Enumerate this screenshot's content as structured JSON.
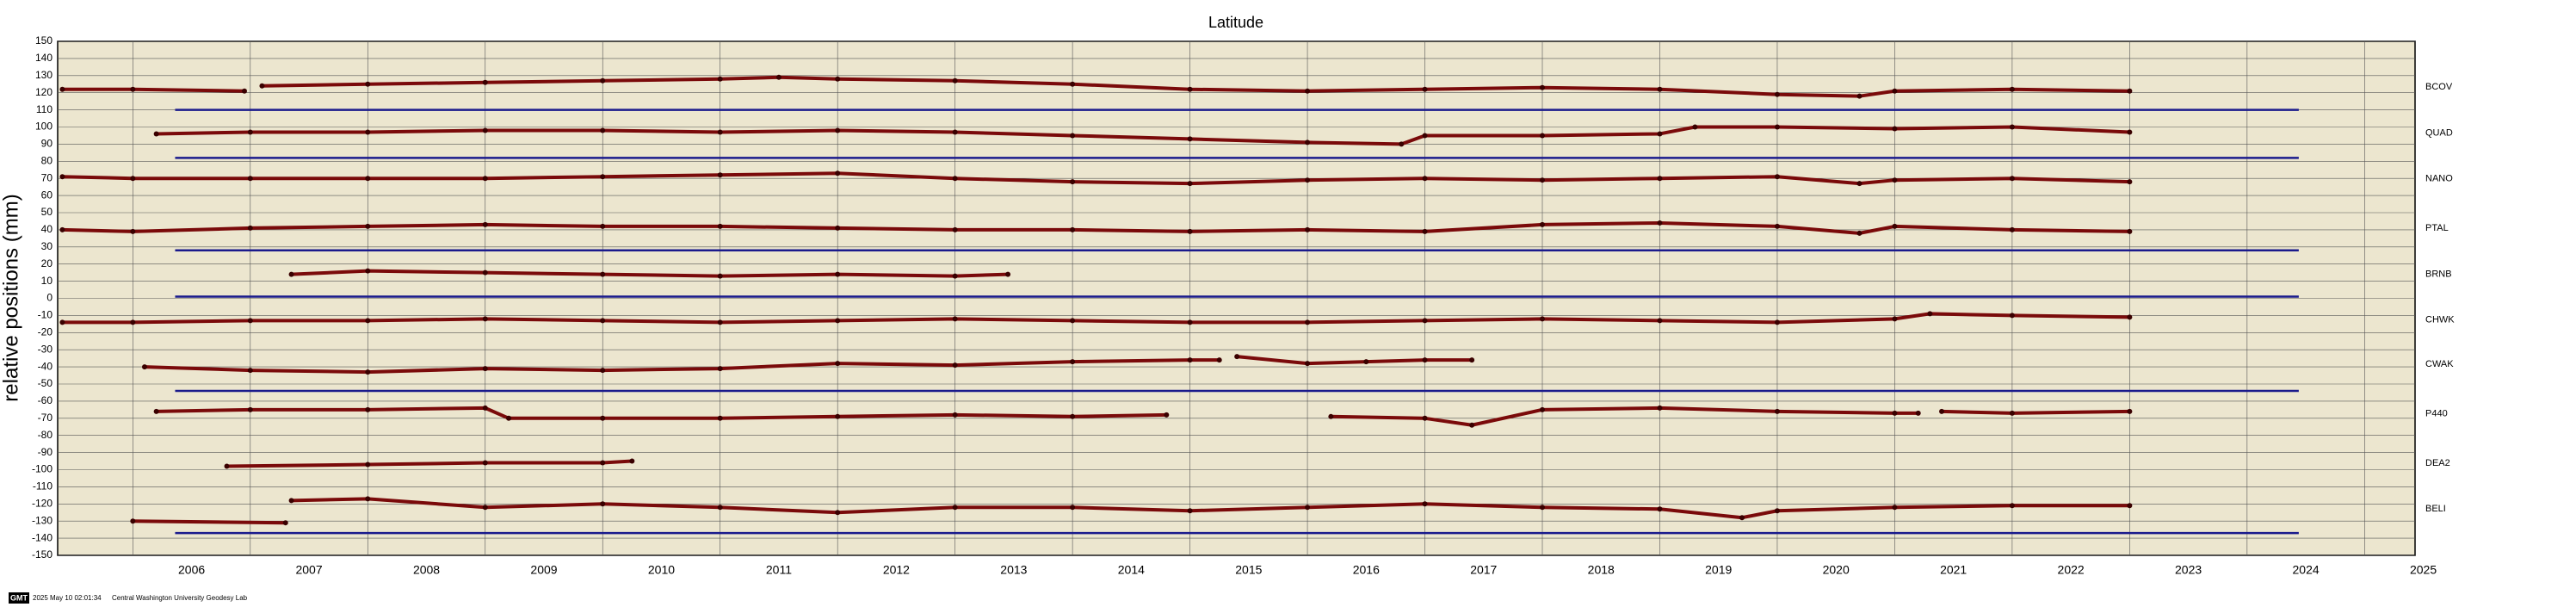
{
  "chart_data": {
    "type": "line",
    "title": "Latitude",
    "y_label": "relative positions (mm)",
    "xlim": [
      2005.36,
      2025.43
    ],
    "ylim": [
      -150,
      150
    ],
    "xticks": [
      2006,
      2007,
      2008,
      2009,
      2010,
      2011,
      2012,
      2013,
      2014,
      2015,
      2016,
      2017,
      2018,
      2019,
      2020,
      2021,
      2022,
      2023,
      2024,
      2025
    ],
    "yticks": [
      -150,
      -140,
      -130,
      -120,
      -110,
      -100,
      -90,
      -80,
      -70,
      -60,
      -50,
      -40,
      -30,
      -20,
      -10,
      0,
      10,
      20,
      30,
      40,
      50,
      60,
      70,
      80,
      90,
      100,
      110,
      120,
      130,
      140,
      150
    ],
    "grid": true,
    "series": [
      {
        "name": "BCOV",
        "color": "#7a0a0a",
        "x": [
          2005.4,
          2006,
          2006.95,
          2007.0,
          2007.1,
          2008,
          2009,
          2010,
          2011,
          2011.5,
          2012,
          2013,
          2014,
          2015,
          2016,
          2017,
          2018,
          2019,
          2020,
          2020.7,
          2021,
          2022,
          2023
        ],
        "values": [
          122,
          122,
          121,
          null,
          124,
          125,
          126,
          127,
          128,
          129,
          128,
          127,
          125,
          122,
          121,
          122,
          123,
          122,
          119,
          118,
          121,
          122,
          121
        ]
      },
      {
        "name": "QUAD",
        "color": "#7a0a0a",
        "x": [
          2006.2,
          2007,
          2008,
          2009,
          2010,
          2011,
          2012,
          2013,
          2014,
          2015,
          2016,
          2016.8,
          2017,
          2018,
          2019,
          2019.3,
          2020,
          2021,
          2022,
          2023
        ],
        "values": [
          96,
          97,
          97,
          98,
          98,
          97,
          98,
          97,
          95,
          93,
          91,
          90,
          95,
          95,
          96,
          100,
          100,
          99,
          100,
          97
        ]
      },
      {
        "name": "NANO",
        "color": "#7a0a0a",
        "x": [
          2005.4,
          2006,
          2007,
          2008,
          2009,
          2010,
          2011,
          2012,
          2013,
          2014,
          2015,
          2016,
          2017,
          2018,
          2019,
          2020,
          2020.7,
          2021,
          2022,
          2023
        ],
        "values": [
          71,
          70,
          70,
          70,
          70,
          71,
          72,
          73,
          70,
          68,
          67,
          69,
          70,
          69,
          70,
          71,
          67,
          69,
          70,
          68
        ]
      },
      {
        "name": "PTAL",
        "color": "#7a0a0a",
        "x": [
          2005.4,
          2006,
          2007,
          2008,
          2009,
          2010,
          2011,
          2012,
          2013,
          2014,
          2015,
          2016,
          2017,
          2018,
          2019,
          2020,
          2020.7,
          2021,
          2022,
          2023
        ],
        "values": [
          40,
          39,
          41,
          42,
          43,
          42,
          42,
          41,
          40,
          40,
          39,
          40,
          39,
          43,
          44,
          42,
          38,
          42,
          40,
          39
        ]
      },
      {
        "name": "BRNB",
        "color": "#7a0a0a",
        "x": [
          2007.35,
          2008,
          2009,
          2010,
          2011,
          2012,
          2013,
          2013.45
        ],
        "values": [
          14,
          16,
          15,
          14,
          13,
          14,
          13,
          14
        ]
      },
      {
        "name": "CHWK",
        "color": "#7a0a0a",
        "x": [
          2005.4,
          2006,
          2007,
          2008,
          2009,
          2010,
          2011,
          2012,
          2013,
          2014,
          2015,
          2016,
          2017,
          2018,
          2019,
          2020,
          2021,
          2021.3,
          2022,
          2023
        ],
        "values": [
          -14,
          -14,
          -13,
          -13,
          -12,
          -13,
          -14,
          -13,
          -12,
          -13,
          -14,
          -14,
          -13,
          -12,
          -13,
          -14,
          -12,
          -9,
          -10,
          -11
        ]
      },
      {
        "name": "CWAK",
        "color": "#7a0a0a",
        "x": [
          2006.1,
          2007,
          2008,
          2009,
          2010,
          2011,
          2012,
          2013,
          2014,
          2015,
          2015.25,
          2015.3,
          2015.4,
          2016,
          2016.5,
          2017,
          2017.4
        ],
        "values": [
          -40,
          -42,
          -43,
          -41,
          -42,
          -41,
          -38,
          -39,
          -37,
          -36,
          -36,
          null,
          -34,
          -38,
          -37,
          -36,
          -36
        ]
      },
      {
        "name": "P440",
        "color": "#7a0a0a",
        "x": [
          2006.2,
          2007,
          2008,
          2009,
          2009.2,
          2010,
          2011,
          2012,
          2013,
          2014,
          2014.8,
          2015.5,
          2016.2,
          2017,
          2017.4,
          2018,
          2019,
          2020,
          2021,
          2021.2,
          2021.3,
          2021.4,
          2022,
          2023
        ],
        "values": [
          -66,
          -65,
          -65,
          -64,
          -70,
          -70,
          -70,
          -69,
          -68,
          -69,
          -68,
          null,
          -69,
          -70,
          -74,
          -65,
          -64,
          -66,
          -67,
          -67,
          null,
          -66,
          -67,
          -66
        ]
      },
      {
        "name": "DEA2",
        "color": "#7a0a0a",
        "x": [
          2006.8,
          2008,
          2009,
          2010,
          2010.25
        ],
        "values": [
          -98,
          -97,
          -96,
          -96,
          -95
        ]
      },
      {
        "name": "BELI",
        "color": "#7a0a0a",
        "x": [
          2006,
          2007.3,
          2007.33,
          2007.35,
          2008,
          2009,
          2010,
          2011,
          2012,
          2013,
          2014,
          2015,
          2016,
          2017,
          2018,
          2019,
          2019.7,
          2020,
          2021,
          2022,
          2023
        ],
        "values": [
          -130,
          -131,
          null,
          -118,
          -117,
          -122,
          -120,
          -122,
          -125,
          -122,
          -122,
          -124,
          -122,
          -120,
          -122,
          -123,
          -128,
          -124,
          -122,
          -121,
          -121
        ]
      }
    ],
    "reference_lines": [
      {
        "color": "#1a1a8c",
        "y": 110,
        "x": [
          2006.36,
          2024.44
        ]
      },
      {
        "color": "#1a1a8c",
        "y": 82,
        "x": [
          2006.36,
          2024.44
        ]
      },
      {
        "color": "#1a1a8c",
        "y": 28,
        "x": [
          2006.36,
          2024.44
        ]
      },
      {
        "color": "#1a1a8c",
        "y": 1,
        "x": [
          2006.36,
          2024.44
        ]
      },
      {
        "color": "#1a1a8c",
        "y": -54,
        "x": [
          2006.36,
          2024.44
        ]
      },
      {
        "color": "#1a1a8c",
        "y": -137,
        "x": [
          2006.36,
          2024.44
        ]
      }
    ]
  },
  "footer": {
    "logo": "GMT",
    "timestamp": "2025 May 10 02:01:34",
    "credit": "Central Washington University Geodesy Lab"
  }
}
